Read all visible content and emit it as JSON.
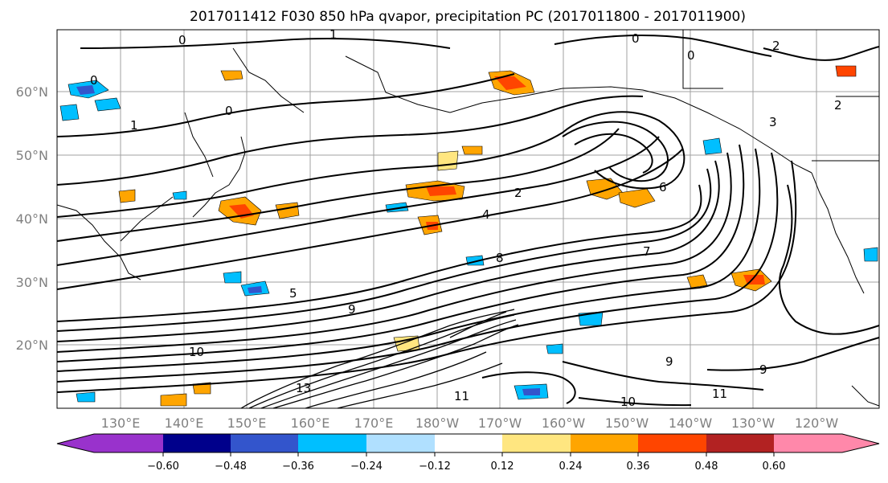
{
  "title": "2017011412 F030 850 hPa qvapor, precipitation PC (2017011800 - 2017011900)",
  "lat_labels": [
    "60°N",
    "50°N",
    "40°N",
    "30°N",
    "20°N"
  ],
  "lon_labels": [
    "130°E",
    "140°E",
    "150°E",
    "160°E",
    "170°E",
    "180°W",
    "170°W",
    "160°W",
    "150°W",
    "140°W",
    "130°W",
    "120°W"
  ],
  "colorbar": {
    "ticks": [
      "−0.60",
      "−0.48",
      "−0.36",
      "−0.24",
      "−0.12",
      "0.12",
      "0.24",
      "0.36",
      "0.48",
      "0.60"
    ],
    "colors": [
      "#9932cc",
      "#00008b",
      "#3355cc",
      "#00bfff",
      "#b0e0ff",
      "#ffffff",
      "#ffe680",
      "#ffa500",
      "#ff4500",
      "#b22222",
      "#ff88aa"
    ]
  },
  "contour_labels": [
    "0",
    "0",
    "0",
    "0",
    "0",
    "1",
    "1",
    "2",
    "2",
    "2",
    "3",
    "4",
    "5",
    "6",
    "7",
    "8",
    "9",
    "9",
    "9",
    "10",
    "10",
    "11",
    "11",
    "13"
  ]
}
